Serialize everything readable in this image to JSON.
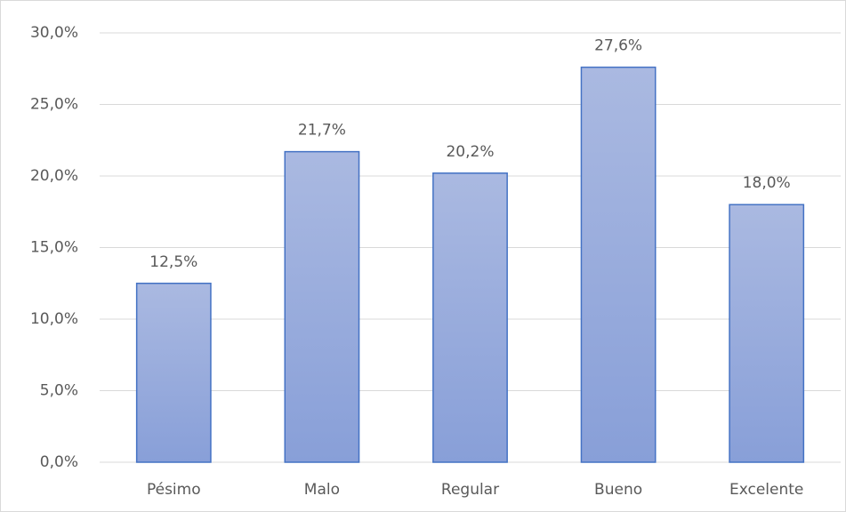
{
  "chart_data": {
    "type": "bar",
    "categories": [
      "Pésimo",
      "Malo",
      "Regular",
      "Bueno",
      "Excelente"
    ],
    "values": [
      12.5,
      21.7,
      20.2,
      27.6,
      18.0
    ],
    "value_labels": [
      "12,5%",
      "21,7%",
      "20,2%",
      "27,6%",
      "18,0%"
    ],
    "color": "#4472c4",
    "ylim": [
      0,
      30
    ],
    "yticks": [
      {
        "value": 0,
        "label": "0,0%"
      },
      {
        "value": 5,
        "label": "5,0%"
      },
      {
        "value": 10,
        "label": "10,0%"
      },
      {
        "value": 15,
        "label": "15,0%"
      },
      {
        "value": 20,
        "label": "20,0%"
      },
      {
        "value": 25,
        "label": "25,0%"
      },
      {
        "value": 30,
        "label": "30,0%"
      }
    ],
    "grid": true
  }
}
